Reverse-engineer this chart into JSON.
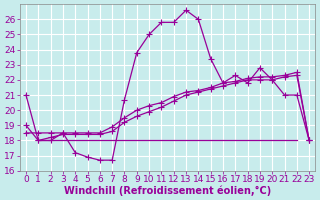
{
  "xlabel": "Windchill (Refroidissement éolien,°C)",
  "bg_color": "#c8ecec",
  "grid_color": "#ffffff",
  "line_color": "#990099",
  "xlim": [
    -0.5,
    23.5
  ],
  "ylim": [
    16,
    27
  ],
  "yticks": [
    16,
    17,
    18,
    19,
    20,
    21,
    22,
    23,
    24,
    25,
    26
  ],
  "xticks": [
    0,
    1,
    2,
    3,
    4,
    5,
    6,
    7,
    8,
    9,
    10,
    11,
    12,
    13,
    14,
    15,
    16,
    17,
    18,
    19,
    20,
    21,
    22,
    23
  ],
  "curve1_x": [
    0,
    1,
    2,
    3,
    4,
    5,
    6,
    7,
    8,
    9,
    10,
    11,
    12,
    13,
    14,
    15,
    16,
    17,
    18,
    19,
    20,
    21,
    22,
    23
  ],
  "curve1_y": [
    21.0,
    18.0,
    18.0,
    18.5,
    17.2,
    16.9,
    16.7,
    16.7,
    20.7,
    23.8,
    25.0,
    25.8,
    25.8,
    26.6,
    26.0,
    23.4,
    21.8,
    22.3,
    21.8,
    22.8,
    22.0,
    21.0,
    21.0,
    18.0
  ],
  "curve2_x": [
    1,
    22
  ],
  "curve2_y": [
    18.0,
    18.0
  ],
  "curve3_x": [
    0,
    1,
    2,
    3,
    4,
    5,
    6,
    7,
    8,
    9,
    10,
    11,
    12,
    13,
    14,
    15,
    16,
    17,
    18,
    19,
    20,
    21,
    22,
    23
  ],
  "curve3_y": [
    19.0,
    18.0,
    18.2,
    18.4,
    18.4,
    18.4,
    18.4,
    18.6,
    19.2,
    19.6,
    19.9,
    20.2,
    20.6,
    21.0,
    21.2,
    21.4,
    21.6,
    21.8,
    22.0,
    22.0,
    22.0,
    22.2,
    22.3,
    18.0
  ],
  "curve4_x": [
    0,
    1,
    2,
    3,
    4,
    5,
    6,
    7,
    8,
    9,
    10,
    11,
    12,
    13,
    14,
    15,
    16,
    17,
    18,
    19,
    20,
    21,
    22,
    23
  ],
  "curve4_y": [
    18.5,
    18.5,
    18.5,
    18.5,
    18.5,
    18.5,
    18.5,
    18.9,
    19.5,
    20.0,
    20.3,
    20.5,
    20.9,
    21.2,
    21.3,
    21.5,
    21.8,
    21.9,
    22.1,
    22.2,
    22.2,
    22.3,
    22.5,
    18.0
  ],
  "tick_fontsize": 6.5,
  "label_fontsize": 7
}
